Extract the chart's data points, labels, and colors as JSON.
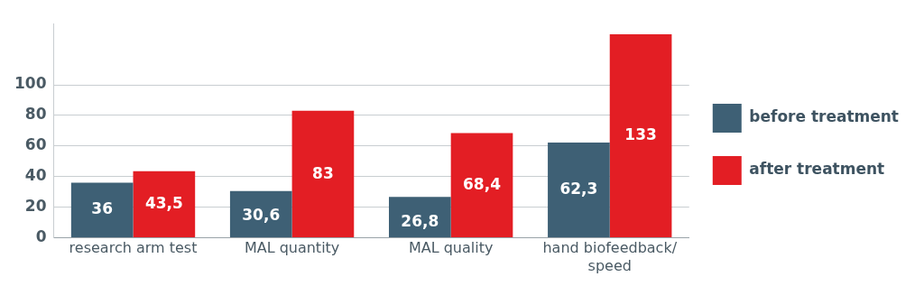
{
  "chart_data": {
    "type": "bar",
    "categories": [
      "research arm test",
      "MAL quantity",
      "MAL quality",
      "hand biofeedback/ speed"
    ],
    "series": [
      {
        "name": "before treatment",
        "color": "#3e6075",
        "values": [
          36,
          30.6,
          26.8,
          62.3
        ],
        "value_labels": [
          "36",
          "30,6",
          "26,8",
          "62,3"
        ]
      },
      {
        "name": "after treatment",
        "color": "#e31e24",
        "values": [
          43.5,
          83,
          68.4,
          133
        ],
        "value_labels": [
          "43,5",
          "83",
          "68,4",
          "133"
        ]
      }
    ],
    "ylim": [
      0,
      140
    ],
    "yticks": [
      0,
      20,
      40,
      60,
      80,
      100
    ],
    "grid": "y",
    "legend": "right"
  }
}
